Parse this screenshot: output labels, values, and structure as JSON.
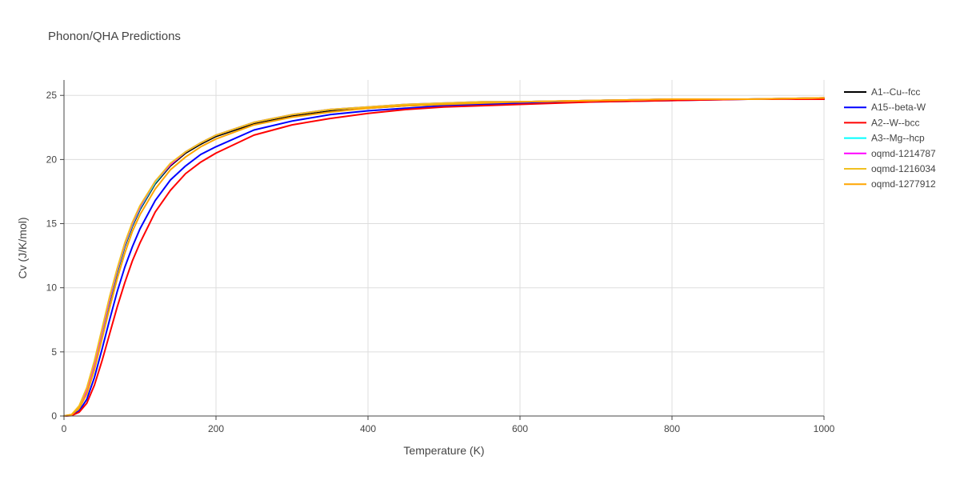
{
  "chart_data": {
    "type": "line",
    "title": "Phonon/QHA Predictions",
    "xlabel": "Temperature (K)",
    "ylabel": "Cv (J/K/mol)",
    "xlim": [
      0,
      1000
    ],
    "ylim": [
      0,
      26.2
    ],
    "xticks": [
      0,
      200,
      400,
      600,
      800,
      1000
    ],
    "yticks": [
      0,
      5,
      10,
      15,
      20,
      25
    ],
    "grid": true,
    "legend_position": "right",
    "x": [
      0,
      10,
      20,
      30,
      40,
      50,
      60,
      70,
      80,
      90,
      100,
      120,
      140,
      160,
      180,
      200,
      250,
      300,
      350,
      400,
      450,
      500,
      550,
      600,
      700,
      800,
      900,
      1000
    ],
    "series": [
      {
        "name": "A1--Cu--fcc",
        "color": "#000000",
        "values": [
          0,
          0.1,
          0.6,
          1.8,
          3.9,
          6.4,
          8.9,
          11.2,
          13.2,
          14.8,
          16.1,
          18.1,
          19.5,
          20.5,
          21.2,
          21.8,
          22.8,
          23.4,
          23.8,
          24.0,
          24.2,
          24.3,
          24.4,
          24.5,
          24.6,
          24.7,
          24.7,
          24.8
        ]
      },
      {
        "name": "A15--beta-W",
        "color": "#0000ff",
        "values": [
          0,
          0.05,
          0.4,
          1.3,
          3.0,
          5.2,
          7.5,
          9.7,
          11.6,
          13.2,
          14.6,
          16.8,
          18.4,
          19.5,
          20.4,
          21.0,
          22.3,
          23.0,
          23.5,
          23.8,
          24.0,
          24.2,
          24.3,
          24.4,
          24.5,
          24.6,
          24.7,
          24.7
        ]
      },
      {
        "name": "A2--W--bcc",
        "color": "#ff0000",
        "values": [
          0,
          0.03,
          0.3,
          1.0,
          2.4,
          4.3,
          6.4,
          8.5,
          10.4,
          12.1,
          13.5,
          15.9,
          17.6,
          18.9,
          19.8,
          20.5,
          21.9,
          22.7,
          23.2,
          23.6,
          23.9,
          24.1,
          24.2,
          24.3,
          24.5,
          24.6,
          24.7,
          24.7
        ]
      },
      {
        "name": "A3--Mg--hcp",
        "color": "#00ffff",
        "values": [
          0,
          0.1,
          0.7,
          2.0,
          4.0,
          6.5,
          9.0,
          11.3,
          13.3,
          14.9,
          16.2,
          18.2,
          19.6,
          20.6,
          21.3,
          21.9,
          22.9,
          23.5,
          23.9,
          24.1,
          24.3,
          24.4,
          24.5,
          24.5,
          24.6,
          24.7,
          24.7,
          24.8
        ]
      },
      {
        "name": "oqmd-1214787",
        "color": "#ff00ff",
        "values": [
          0,
          0.1,
          0.7,
          2.0,
          4.1,
          6.6,
          9.1,
          11.4,
          13.4,
          15.0,
          16.3,
          18.3,
          19.6,
          20.6,
          21.3,
          21.9,
          22.9,
          23.5,
          23.9,
          24.1,
          24.3,
          24.4,
          24.5,
          24.5,
          24.6,
          24.7,
          24.7,
          24.8
        ]
      },
      {
        "name": "oqmd-1216034",
        "color": "#f0c020",
        "values": [
          0,
          0.12,
          0.8,
          2.2,
          4.3,
          6.8,
          9.3,
          11.5,
          13.5,
          15.1,
          16.4,
          18.3,
          19.7,
          20.6,
          21.3,
          21.9,
          22.9,
          23.5,
          23.9,
          24.1,
          24.3,
          24.4,
          24.5,
          24.5,
          24.6,
          24.7,
          24.7,
          24.8
        ]
      },
      {
        "name": "oqmd-1277912",
        "color": "#ffa500",
        "values": [
          0,
          0.1,
          0.6,
          1.7,
          3.6,
          6.0,
          8.4,
          10.7,
          12.7,
          14.4,
          15.7,
          17.7,
          19.2,
          20.2,
          21.0,
          21.6,
          22.7,
          23.3,
          23.7,
          24.0,
          24.2,
          24.3,
          24.4,
          24.5,
          24.6,
          24.7,
          24.7,
          24.8
        ]
      }
    ]
  }
}
